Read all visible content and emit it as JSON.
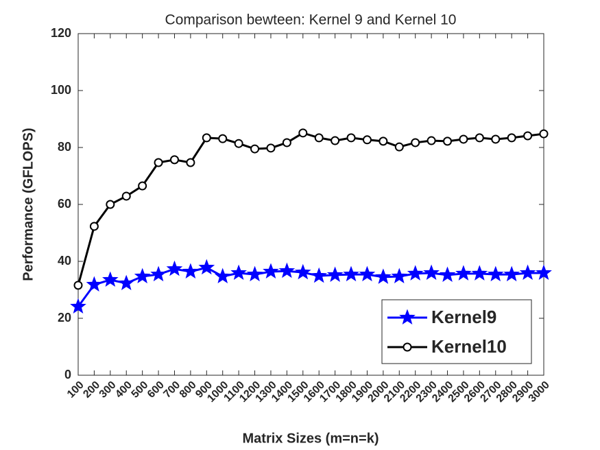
{
  "chart_data": {
    "type": "line",
    "title": "Comparison bewteen: Kernel 9 and Kernel 10",
    "xlabel": "Matrix Sizes (m=n=k)",
    "ylabel": "Performance (GFLOPS)",
    "x": [
      100,
      200,
      300,
      400,
      500,
      600,
      700,
      800,
      900,
      1000,
      1100,
      1200,
      1300,
      1400,
      1500,
      1600,
      1700,
      1800,
      1900,
      2000,
      2100,
      2200,
      2300,
      2400,
      2500,
      2600,
      2700,
      2800,
      2900,
      3000
    ],
    "series": [
      {
        "name": "Kernel9",
        "color": "#0000ff",
        "marker": "star",
        "values": [
          24.1,
          31.8,
          33.5,
          32.3,
          34.7,
          35.4,
          37.3,
          36.4,
          37.8,
          34.7,
          35.9,
          35.4,
          36.4,
          36.6,
          36.1,
          34.9,
          35.2,
          35.4,
          35.4,
          34.5,
          34.7,
          35.7,
          35.9,
          35.2,
          35.7,
          35.7,
          35.4,
          35.4,
          35.9,
          35.9
        ]
      },
      {
        "name": "Kernel10",
        "color": "#000000",
        "marker": "circle",
        "values": [
          31.6,
          52.3,
          60,
          62.9,
          66.5,
          74.7,
          75.7,
          74.7,
          83.4,
          83.1,
          81.4,
          79.5,
          79.8,
          81.7,
          85.1,
          83.4,
          82.4,
          83.4,
          82.7,
          82.2,
          80.2,
          81.7,
          82.4,
          82.2,
          82.9,
          83.4,
          82.9,
          83.4,
          84.1,
          84.8
        ]
      }
    ],
    "xlim": [
      100,
      3000
    ],
    "xticks": [
      100,
      200,
      300,
      400,
      500,
      600,
      700,
      800,
      900,
      1000,
      1100,
      1200,
      1300,
      1400,
      1500,
      1600,
      1700,
      1800,
      1900,
      2000,
      2100,
      2200,
      2300,
      2400,
      2500,
      2600,
      2700,
      2800,
      2900,
      3000
    ],
    "ylim": [
      0,
      120
    ],
    "yticks": [
      0,
      20,
      40,
      60,
      80,
      100,
      120
    ],
    "grid": false,
    "legend": "southeast"
  }
}
